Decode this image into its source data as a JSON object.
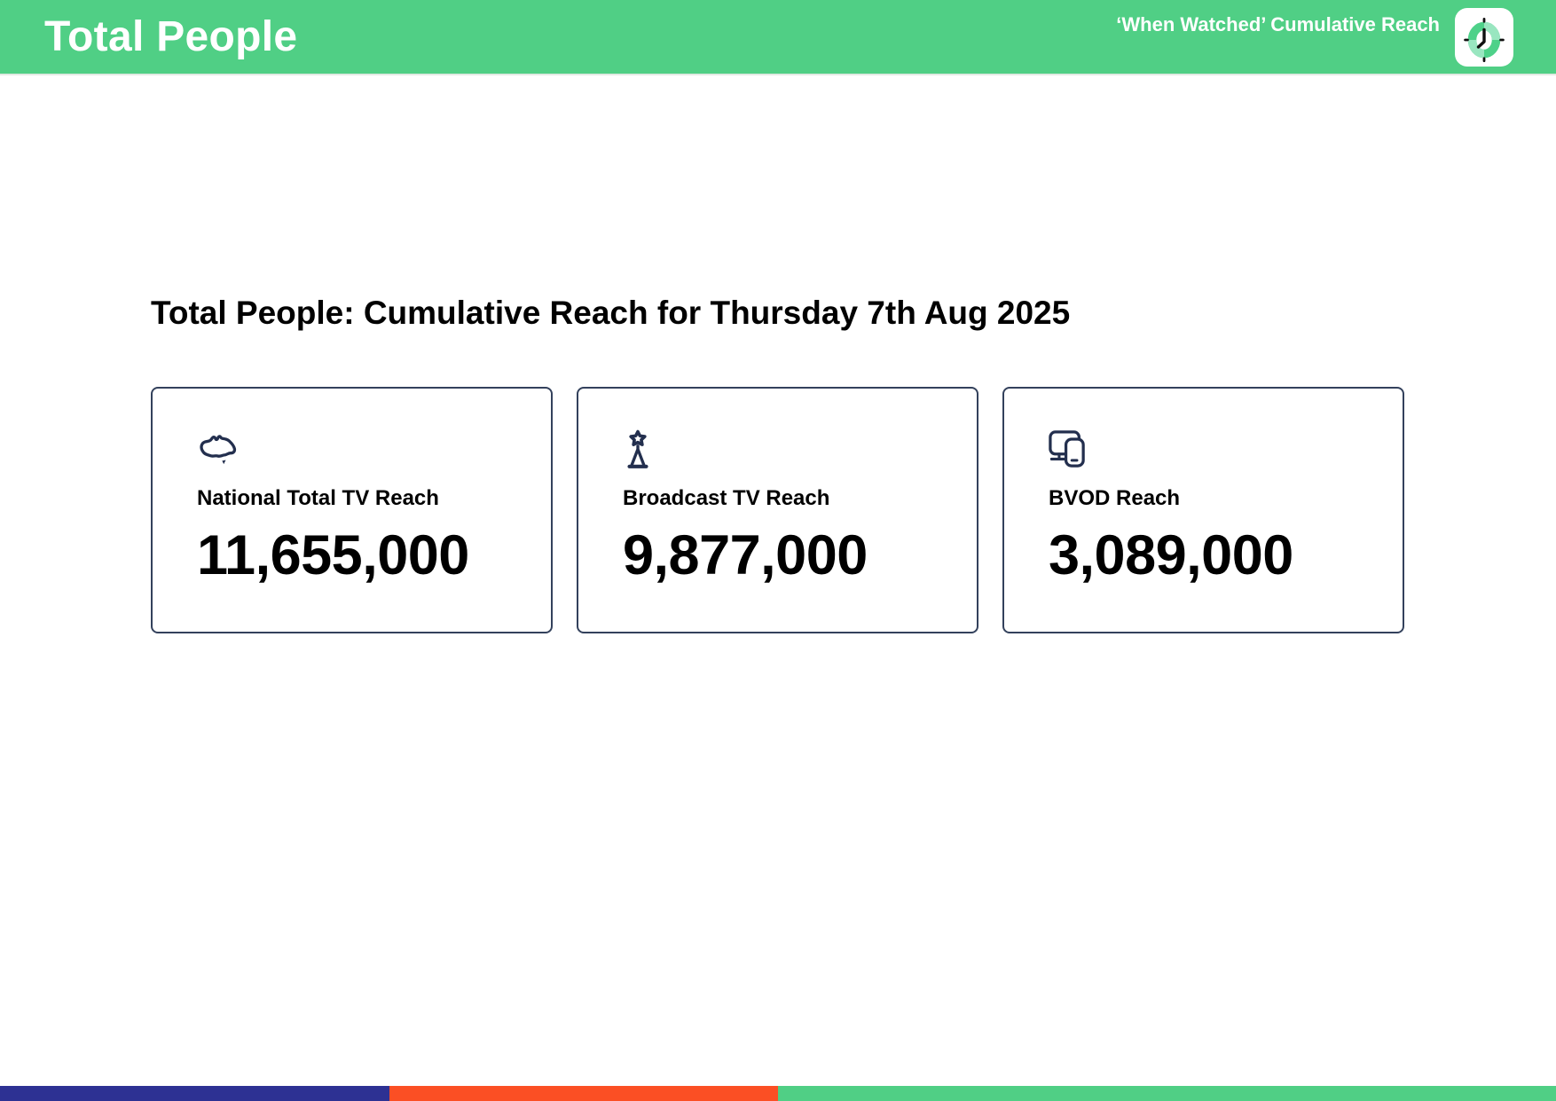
{
  "header": {
    "title": "Total People",
    "right_label": "‘When Watched’ Cumulative Reach",
    "bg_color": "#50cf85",
    "icon": "clock-badge-icon"
  },
  "main": {
    "section_title": "Total People: Cumulative Reach for Thursday 7th Aug 2025",
    "cards": [
      {
        "icon": "australia-map-icon",
        "label": "National Total TV Reach",
        "value": "11,655,000"
      },
      {
        "icon": "broadcast-tower-icon",
        "label": "Broadcast TV Reach",
        "value": "9,877,000"
      },
      {
        "icon": "devices-icon",
        "label": "BVOD Reach",
        "value": "3,089,000"
      }
    ],
    "card_border_color": "#33415c",
    "icon_color": "#232f4e"
  },
  "footer": {
    "segments": [
      {
        "name": "navy",
        "color": "#2d3193",
        "width_pct": 25
      },
      {
        "name": "orange",
        "color": "#fb4f24",
        "width_pct": 25
      },
      {
        "name": "green",
        "color": "#50cf85",
        "width_pct": 50
      }
    ]
  }
}
